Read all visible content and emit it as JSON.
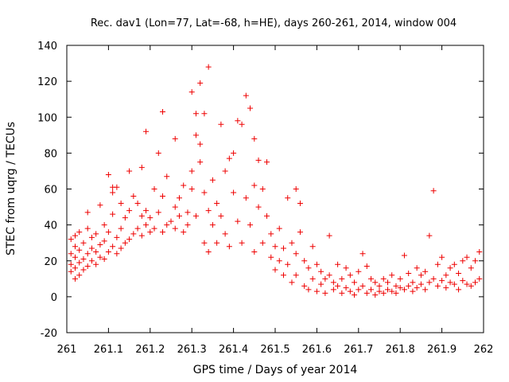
{
  "chart_data": {
    "type": "scatter",
    "title": "Rec. dav1 (Lon=77, Lat=-68, h=HE), days 260-261, 2014, window 004",
    "xlabel": "GPS time / Days of year 2014",
    "ylabel": "STEC from uqrg / TECUs",
    "xlim": [
      261,
      262
    ],
    "ylim": [
      -20,
      140
    ],
    "xticks": [
      261,
      261.1,
      261.2,
      261.3,
      261.4,
      261.5,
      261.6,
      261.7,
      261.8,
      261.9,
      262
    ],
    "xtick_labels": [
      "261",
      "261.1",
      "261.2",
      "261.3",
      "261.4",
      "261.5",
      "261.6",
      "261.7",
      "261.8",
      "261.9",
      "262"
    ],
    "yticks": [
      -20,
      0,
      20,
      40,
      60,
      80,
      100,
      120,
      140
    ],
    "ytick_labels": [
      "-20",
      "0",
      "20",
      "40",
      "60",
      "80",
      "100",
      "120",
      "140"
    ],
    "marker": "+",
    "color": "#ee0000",
    "series": [
      {
        "name": "STEC",
        "points": [
          [
            261.01,
            14
          ],
          [
            261.01,
            18
          ],
          [
            261.01,
            24
          ],
          [
            261.01,
            32
          ],
          [
            261.02,
            10
          ],
          [
            261.02,
            16
          ],
          [
            261.02,
            22
          ],
          [
            261.02,
            28
          ],
          [
            261.02,
            34
          ],
          [
            261.03,
            12
          ],
          [
            261.03,
            19
          ],
          [
            261.03,
            26
          ],
          [
            261.03,
            36
          ],
          [
            261.04,
            15
          ],
          [
            261.04,
            21
          ],
          [
            261.04,
            30
          ],
          [
            261.05,
            17
          ],
          [
            261.05,
            24
          ],
          [
            261.05,
            38
          ],
          [
            261.05,
            47
          ],
          [
            261.06,
            20
          ],
          [
            261.06,
            27
          ],
          [
            261.06,
            33
          ],
          [
            261.07,
            18
          ],
          [
            261.07,
            25
          ],
          [
            261.07,
            35
          ],
          [
            261.08,
            22
          ],
          [
            261.08,
            29
          ],
          [
            261.08,
            51
          ],
          [
            261.09,
            21
          ],
          [
            261.09,
            31
          ],
          [
            261.09,
            40
          ],
          [
            261.1,
            68
          ],
          [
            261.1,
            25
          ],
          [
            261.1,
            36
          ],
          [
            261.11,
            58
          ],
          [
            261.11,
            61
          ],
          [
            261.11,
            28
          ],
          [
            261.11,
            46
          ],
          [
            261.12,
            24
          ],
          [
            261.12,
            33
          ],
          [
            261.12,
            61
          ],
          [
            261.13,
            27
          ],
          [
            261.13,
            38
          ],
          [
            261.13,
            52
          ],
          [
            261.14,
            30
          ],
          [
            261.14,
            44
          ],
          [
            261.15,
            70
          ],
          [
            261.15,
            32
          ],
          [
            261.15,
            48
          ],
          [
            261.16,
            35
          ],
          [
            261.16,
            56
          ],
          [
            261.17,
            38
          ],
          [
            261.17,
            52
          ],
          [
            261.18,
            72
          ],
          [
            261.18,
            34
          ],
          [
            261.18,
            45
          ],
          [
            261.19,
            92
          ],
          [
            261.19,
            40
          ],
          [
            261.19,
            48
          ],
          [
            261.2,
            36
          ],
          [
            261.2,
            44
          ],
          [
            261.21,
            60
          ],
          [
            261.21,
            38
          ],
          [
            261.22,
            80
          ],
          [
            261.22,
            47
          ],
          [
            261.23,
            103
          ],
          [
            261.23,
            36
          ],
          [
            261.23,
            56
          ],
          [
            261.24,
            40
          ],
          [
            261.24,
            67
          ],
          [
            261.25,
            42
          ],
          [
            261.26,
            88
          ],
          [
            261.26,
            38
          ],
          [
            261.26,
            50
          ],
          [
            261.27,
            45
          ],
          [
            261.27,
            55
          ],
          [
            261.28,
            36
          ],
          [
            261.28,
            62
          ],
          [
            261.29,
            40
          ],
          [
            261.29,
            47
          ],
          [
            261.3,
            114
          ],
          [
            261.3,
            60
          ],
          [
            261.3,
            70
          ],
          [
            261.31,
            90
          ],
          [
            261.31,
            102
          ],
          [
            261.31,
            45
          ],
          [
            261.32,
            119
          ],
          [
            261.32,
            85
          ],
          [
            261.32,
            75
          ],
          [
            261.33,
            102
          ],
          [
            261.33,
            58
          ],
          [
            261.33,
            30
          ],
          [
            261.34,
            128
          ],
          [
            261.34,
            48
          ],
          [
            261.34,
            25
          ],
          [
            261.35,
            65
          ],
          [
            261.35,
            40
          ],
          [
            261.36,
            52
          ],
          [
            261.36,
            30
          ],
          [
            261.37,
            96
          ],
          [
            261.37,
            45
          ],
          [
            261.38,
            70
          ],
          [
            261.38,
            35
          ],
          [
            261.39,
            77
          ],
          [
            261.39,
            28
          ],
          [
            261.4,
            80
          ],
          [
            261.4,
            58
          ],
          [
            261.41,
            98
          ],
          [
            261.41,
            42
          ],
          [
            261.42,
            96
          ],
          [
            261.42,
            30
          ],
          [
            261.43,
            112
          ],
          [
            261.43,
            55
          ],
          [
            261.44,
            105
          ],
          [
            261.44,
            40
          ],
          [
            261.45,
            88
          ],
          [
            261.45,
            62
          ],
          [
            261.45,
            25
          ],
          [
            261.46,
            76
          ],
          [
            261.46,
            50
          ],
          [
            261.47,
            60
          ],
          [
            261.47,
            30
          ],
          [
            261.48,
            75
          ],
          [
            261.48,
            45
          ],
          [
            261.49,
            35
          ],
          [
            261.49,
            22
          ],
          [
            261.5,
            28
          ],
          [
            261.5,
            15
          ],
          [
            261.51,
            38
          ],
          [
            261.51,
            20
          ],
          [
            261.52,
            27
          ],
          [
            261.52,
            12
          ],
          [
            261.53,
            55
          ],
          [
            261.53,
            18
          ],
          [
            261.54,
            30
          ],
          [
            261.54,
            8
          ],
          [
            261.55,
            60
          ],
          [
            261.55,
            24
          ],
          [
            261.55,
            12
          ],
          [
            261.56,
            52
          ],
          [
            261.56,
            36
          ],
          [
            261.57,
            20
          ],
          [
            261.57,
            6
          ],
          [
            261.58,
            16
          ],
          [
            261.58,
            4
          ],
          [
            261.59,
            28
          ],
          [
            261.59,
            10
          ],
          [
            261.6,
            18
          ],
          [
            261.6,
            3
          ],
          [
            261.61,
            14
          ],
          [
            261.61,
            7
          ],
          [
            261.62,
            10
          ],
          [
            261.62,
            2
          ],
          [
            261.63,
            34
          ],
          [
            261.63,
            12
          ],
          [
            261.64,
            8
          ],
          [
            261.64,
            4
          ],
          [
            261.65,
            18
          ],
          [
            261.65,
            6
          ],
          [
            261.66,
            10
          ],
          [
            261.66,
            2
          ],
          [
            261.67,
            16
          ],
          [
            261.67,
            5
          ],
          [
            261.68,
            12
          ],
          [
            261.68,
            3
          ],
          [
            261.69,
            8
          ],
          [
            261.69,
            1
          ],
          [
            261.7,
            14
          ],
          [
            261.7,
            4
          ],
          [
            261.71,
            24
          ],
          [
            261.71,
            6
          ],
          [
            261.72,
            17
          ],
          [
            261.72,
            2
          ],
          [
            261.73,
            10
          ],
          [
            261.73,
            4
          ],
          [
            261.74,
            8
          ],
          [
            261.74,
            1
          ],
          [
            261.75,
            6
          ],
          [
            261.75,
            3
          ],
          [
            261.76,
            10
          ],
          [
            261.76,
            2
          ],
          [
            261.77,
            8
          ],
          [
            261.77,
            4
          ],
          [
            261.78,
            12
          ],
          [
            261.78,
            3
          ],
          [
            261.79,
            6
          ],
          [
            261.79,
            2
          ],
          [
            261.8,
            10
          ],
          [
            261.8,
            5
          ],
          [
            261.81,
            23
          ],
          [
            261.81,
            4
          ],
          [
            261.82,
            13
          ],
          [
            261.82,
            6
          ],
          [
            261.83,
            8
          ],
          [
            261.83,
            3
          ],
          [
            261.84,
            16
          ],
          [
            261.84,
            5
          ],
          [
            261.85,
            12
          ],
          [
            261.85,
            7
          ],
          [
            261.86,
            14
          ],
          [
            261.86,
            4
          ],
          [
            261.87,
            34
          ],
          [
            261.87,
            8
          ],
          [
            261.88,
            59
          ],
          [
            261.88,
            10
          ],
          [
            261.89,
            18
          ],
          [
            261.89,
            6
          ],
          [
            261.9,
            22
          ],
          [
            261.9,
            9
          ],
          [
            261.91,
            12
          ],
          [
            261.91,
            5
          ],
          [
            261.92,
            16
          ],
          [
            261.92,
            8
          ],
          [
            261.93,
            18
          ],
          [
            261.93,
            7
          ],
          [
            261.94,
            13
          ],
          [
            261.94,
            4
          ],
          [
            261.95,
            20
          ],
          [
            261.95,
            9
          ],
          [
            261.96,
            22
          ],
          [
            261.96,
            7
          ],
          [
            261.97,
            16
          ],
          [
            261.97,
            6
          ],
          [
            261.98,
            20
          ],
          [
            261.98,
            8
          ],
          [
            261.99,
            25
          ],
          [
            261.99,
            10
          ]
        ]
      }
    ]
  }
}
